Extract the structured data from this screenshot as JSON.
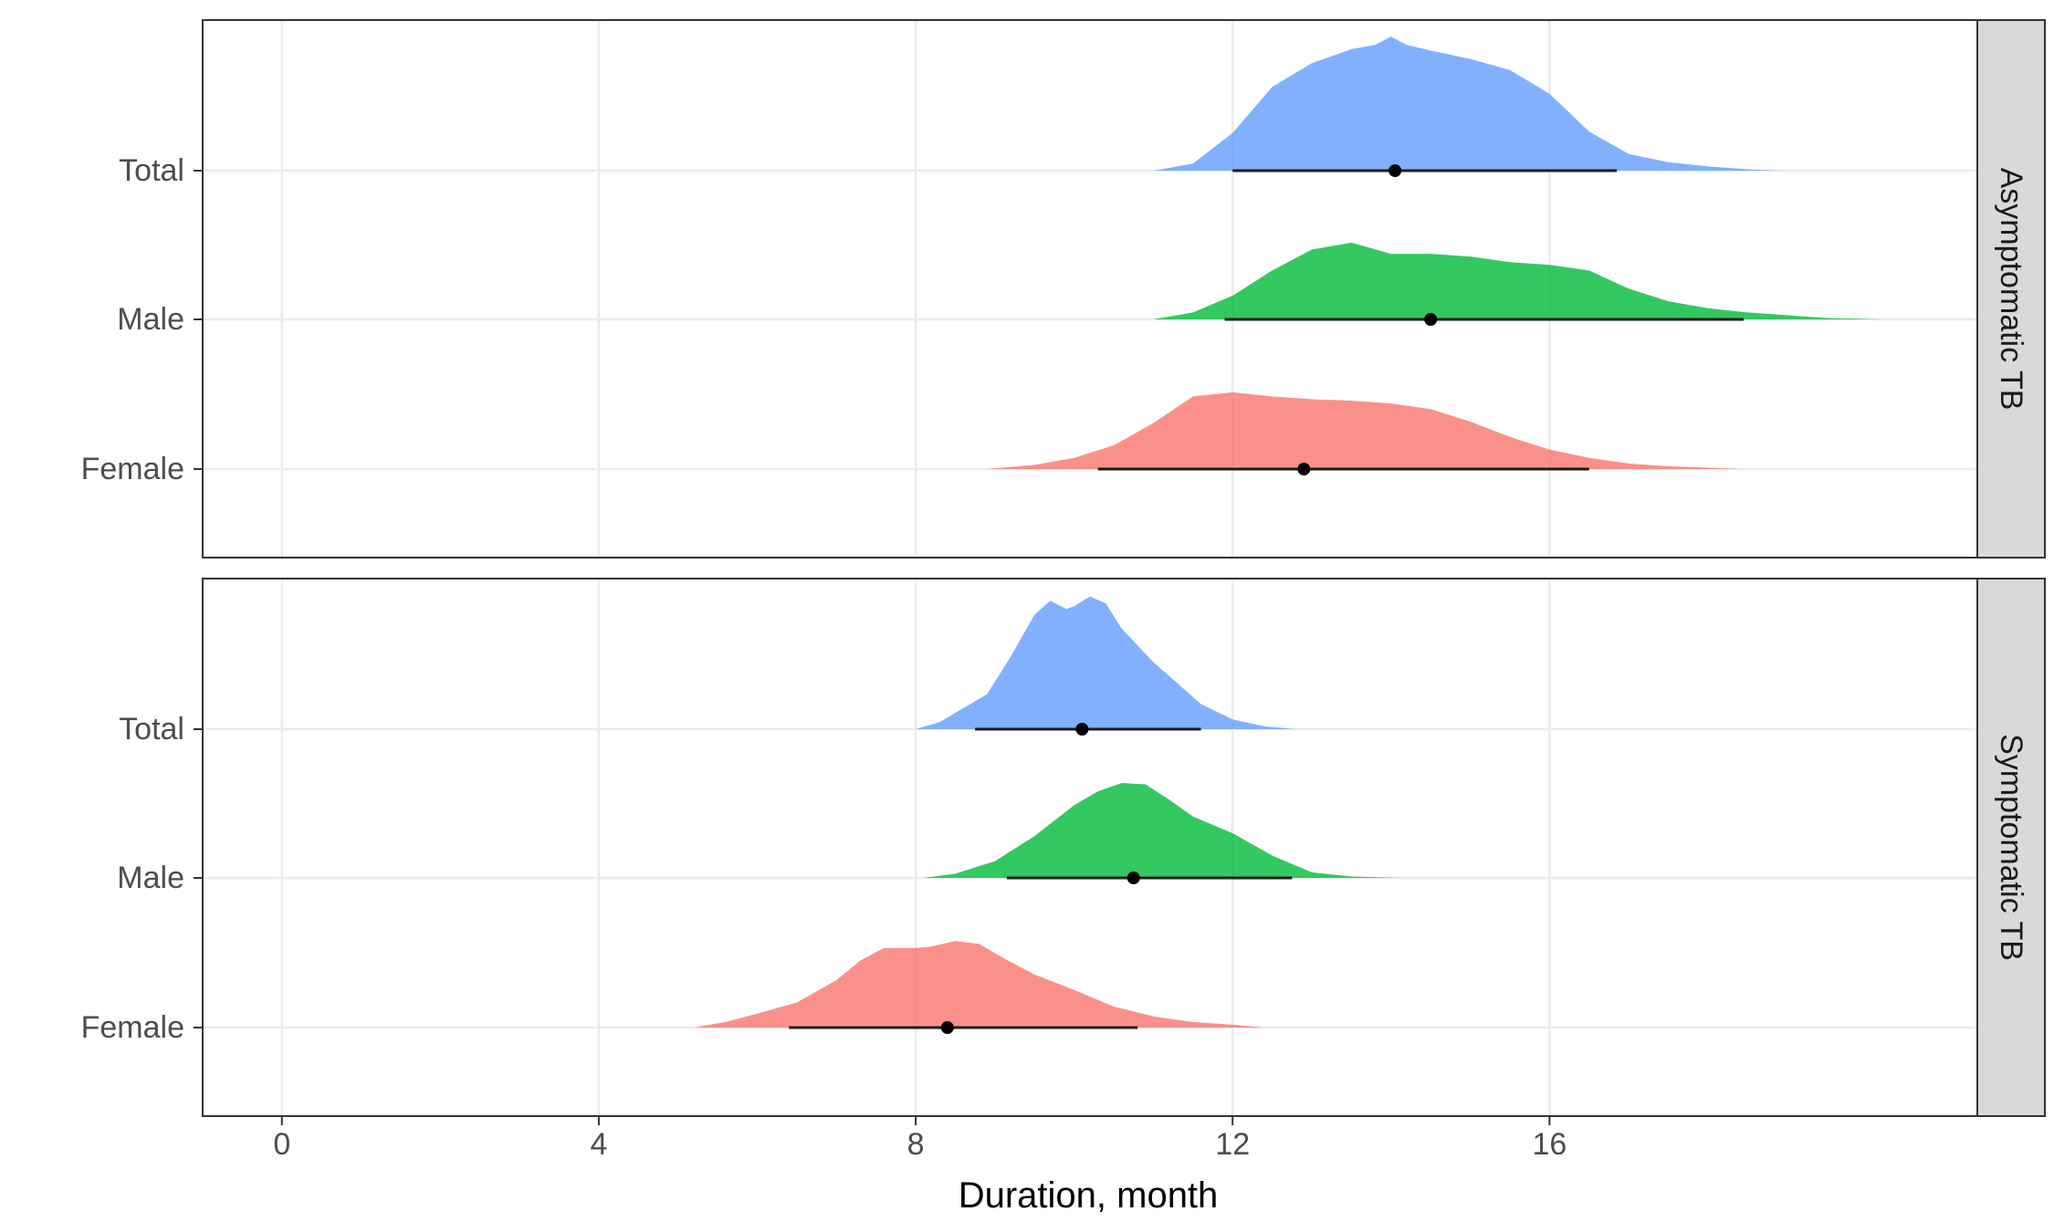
{
  "chart_data": {
    "type": "area",
    "subtype": "ridgeline-density-with-point-interval",
    "xlabel": "Duration, month",
    "xlim": [
      -1.0,
      21.4
    ],
    "xticks": [
      0,
      4,
      8,
      12,
      16
    ],
    "xtick_labels": [
      "0",
      "4",
      "8",
      "12",
      "16"
    ],
    "categories": [
      "Total",
      "Male",
      "Female"
    ],
    "grid": true,
    "legend": "none",
    "colors": {
      "Total": "#619CFF",
      "Male": "#00BA38",
      "Female": "#F8766D"
    },
    "panels": [
      {
        "strip": "Asymptomatic TB",
        "series": [
          {
            "category": "Total",
            "point": 14.05,
            "interval": [
              12.0,
              16.85
            ],
            "density_x": [
              11.0,
              11.5,
              12.0,
              12.5,
              13.0,
              13.5,
              13.8,
              14.0,
              14.2,
              14.5,
              15.0,
              15.5,
              16.0,
              16.5,
              17.0,
              17.5,
              18.0,
              18.5,
              18.9
            ],
            "density_y": [
              0.0,
              0.05,
              0.27,
              0.6,
              0.77,
              0.87,
              0.9,
              0.96,
              0.9,
              0.86,
              0.8,
              0.72,
              0.55,
              0.28,
              0.12,
              0.06,
              0.03,
              0.01,
              0.0
            ]
          },
          {
            "category": "Male",
            "point": 14.5,
            "interval": [
              11.9,
              18.45
            ],
            "density_x": [
              11.0,
              11.5,
              12.0,
              12.5,
              13.0,
              13.5,
              14.0,
              14.5,
              15.0,
              15.5,
              16.0,
              16.5,
              17.0,
              17.5,
              18.0,
              18.5,
              19.0,
              19.5,
              20.2
            ],
            "density_y": [
              0.0,
              0.05,
              0.17,
              0.35,
              0.5,
              0.55,
              0.47,
              0.47,
              0.45,
              0.41,
              0.39,
              0.35,
              0.22,
              0.13,
              0.08,
              0.05,
              0.03,
              0.01,
              0.0
            ]
          },
          {
            "category": "Female",
            "point": 12.9,
            "interval": [
              10.3,
              16.5
            ],
            "density_x": [
              8.9,
              9.5,
              10.0,
              10.5,
              11.0,
              11.5,
              12.0,
              12.5,
              13.0,
              13.5,
              14.0,
              14.5,
              15.0,
              15.5,
              16.0,
              16.5,
              17.0,
              17.5,
              18.0,
              18.4
            ],
            "density_y": [
              0.0,
              0.03,
              0.08,
              0.17,
              0.33,
              0.52,
              0.55,
              0.52,
              0.5,
              0.49,
              0.47,
              0.43,
              0.34,
              0.23,
              0.14,
              0.08,
              0.04,
              0.02,
              0.01,
              0.0
            ]
          }
        ]
      },
      {
        "strip": "Symptomatic TB",
        "series": [
          {
            "category": "Total",
            "point": 10.1,
            "interval": [
              8.75,
              11.6
            ],
            "density_x": [
              8.0,
              8.3,
              8.6,
              8.9,
              9.2,
              9.5,
              9.7,
              9.9,
              10.0,
              10.2,
              10.4,
              10.6,
              10.8,
              11.0,
              11.3,
              11.6,
              12.0,
              12.4,
              12.8
            ],
            "density_y": [
              0.0,
              0.05,
              0.15,
              0.25,
              0.52,
              0.82,
              0.92,
              0.86,
              0.88,
              0.95,
              0.9,
              0.72,
              0.6,
              0.48,
              0.33,
              0.18,
              0.07,
              0.02,
              0.0
            ]
          },
          {
            "category": "Male",
            "point": 10.75,
            "interval": [
              9.15,
              12.75
            ],
            "density_x": [
              8.1,
              8.5,
              9.0,
              9.5,
              10.0,
              10.3,
              10.6,
              10.9,
              11.2,
              11.5,
              12.0,
              12.5,
              13.0,
              13.5,
              14.1
            ],
            "density_y": [
              0.0,
              0.03,
              0.12,
              0.3,
              0.52,
              0.62,
              0.68,
              0.67,
              0.56,
              0.44,
              0.32,
              0.16,
              0.04,
              0.01,
              0.0
            ]
          },
          {
            "category": "Female",
            "point": 8.4,
            "interval": [
              6.4,
              10.8
            ],
            "density_x": [
              5.2,
              5.6,
              6.0,
              6.5,
              7.0,
              7.3,
              7.6,
              8.0,
              8.2,
              8.5,
              8.8,
              9.1,
              9.5,
              10.0,
              10.5,
              11.0,
              11.5,
              12.0,
              12.4
            ],
            "density_y": [
              0.0,
              0.04,
              0.1,
              0.18,
              0.34,
              0.48,
              0.57,
              0.57,
              0.58,
              0.62,
              0.6,
              0.5,
              0.38,
              0.27,
              0.15,
              0.08,
              0.04,
              0.02,
              0.0
            ]
          }
        ]
      }
    ]
  }
}
